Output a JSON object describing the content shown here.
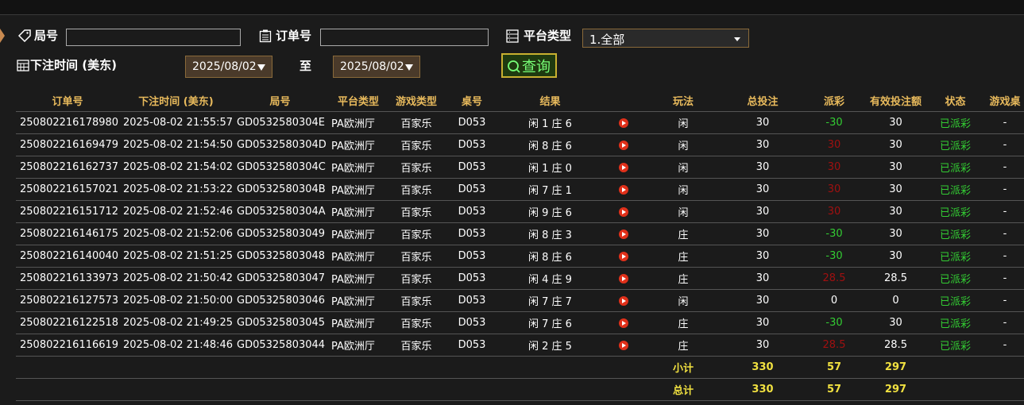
{
  "filters": {
    "round_label": "局号",
    "order_label": "订单号",
    "platform_label": "平台类型",
    "platform_value": "1.全部",
    "time_label": "下注时间 (美东)",
    "date_from": "2025/08/02",
    "to_label": "至",
    "date_to": "2025/08/02",
    "button": "查询"
  },
  "table": {
    "headers": [
      "订单号",
      "下注时间 (美东)",
      "局号",
      "平台类型",
      "游戏类型",
      "桌号",
      "结果",
      "玩法",
      "总投注",
      "派彩",
      "有效投注额",
      "状态",
      "游戏桌"
    ],
    "rows": [
      [
        "250802216178980",
        "2025-08-02 21:55:57",
        "GD0532580304E",
        "PA欧洲厅",
        "百家乐",
        "D053",
        "闲 1 庄 6",
        "闲",
        30,
        -30,
        30,
        "已派彩",
        "-"
      ],
      [
        "250802216169479",
        "2025-08-02 21:54:50",
        "GD0532580304D",
        "PA欧洲厅",
        "百家乐",
        "D053",
        "闲 8 庄 6",
        "闲",
        30,
        30,
        30,
        "已派彩",
        "-"
      ],
      [
        "250802216162737",
        "2025-08-02 21:54:02",
        "GD0532580304C",
        "PA欧洲厅",
        "百家乐",
        "D053",
        "闲 1 庄 0",
        "闲",
        30,
        30,
        30,
        "已派彩",
        "-"
      ],
      [
        "250802216157021",
        "2025-08-02 21:53:22",
        "GD0532580304B",
        "PA欧洲厅",
        "百家乐",
        "D053",
        "闲 7 庄 1",
        "闲",
        30,
        30,
        30,
        "已派彩",
        "-"
      ],
      [
        "250802216151712",
        "2025-08-02 21:52:46",
        "GD0532580304A",
        "PA欧洲厅",
        "百家乐",
        "D053",
        "闲 9 庄 6",
        "闲",
        30,
        30,
        30,
        "已派彩",
        "-"
      ],
      [
        "250802216146175",
        "2025-08-02 21:52:06",
        "GD05325803049",
        "PA欧洲厅",
        "百家乐",
        "D053",
        "闲 8 庄 3",
        "庄",
        30,
        -30,
        30,
        "已派彩",
        "-"
      ],
      [
        "250802216140040",
        "2025-08-02 21:51:25",
        "GD05325803048",
        "PA欧洲厅",
        "百家乐",
        "D053",
        "闲 8 庄 6",
        "庄",
        30,
        -30,
        30,
        "已派彩",
        "-"
      ],
      [
        "250802216133973",
        "2025-08-02 21:50:42",
        "GD05325803047",
        "PA欧洲厅",
        "百家乐",
        "D053",
        "闲 4 庄 9",
        "庄",
        30,
        28.5,
        28.5,
        "已派彩",
        "-"
      ],
      [
        "250802216127573",
        "2025-08-02 21:50:00",
        "GD05325803046",
        "PA欧洲厅",
        "百家乐",
        "D053",
        "闲 7 庄 7",
        "闲",
        30,
        0,
        0,
        "已派彩",
        "-"
      ],
      [
        "250802216122518",
        "2025-08-02 21:49:25",
        "GD05325803045",
        "PA欧洲厅",
        "百家乐",
        "D053",
        "闲 7 庄 6",
        "庄",
        30,
        -30,
        30,
        "已派彩",
        "-"
      ],
      [
        "250802216116619",
        "2025-08-02 21:48:46",
        "GD05325803044",
        "PA欧洲厅",
        "百家乐",
        "D053",
        "闲 2 庄 5",
        "庄",
        30,
        28.5,
        28.5,
        "已派彩",
        "-"
      ]
    ],
    "subtotal": {
      "label": "小计",
      "bet": 330,
      "payout": 57,
      "valid": 297
    },
    "total": {
      "label": "总计",
      "bet": 330,
      "payout": 57,
      "valid": 297
    }
  }
}
